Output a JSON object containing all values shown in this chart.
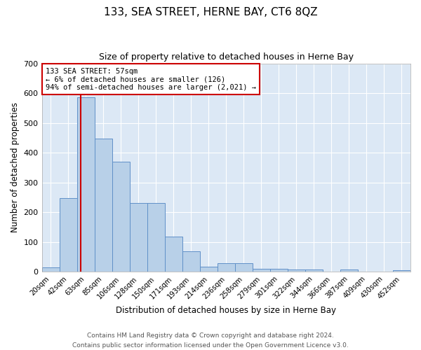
{
  "title": "133, SEA STREET, HERNE BAY, CT6 8QZ",
  "subtitle": "Size of property relative to detached houses in Herne Bay",
  "xlabel": "Distribution of detached houses by size in Herne Bay",
  "ylabel": "Number of detached properties",
  "categories": [
    "20sqm",
    "42sqm",
    "63sqm",
    "85sqm",
    "106sqm",
    "128sqm",
    "150sqm",
    "171sqm",
    "193sqm",
    "214sqm",
    "236sqm",
    "258sqm",
    "279sqm",
    "301sqm",
    "322sqm",
    "344sqm",
    "366sqm",
    "387sqm",
    "409sqm",
    "430sqm",
    "452sqm"
  ],
  "values": [
    15,
    247,
    585,
    447,
    370,
    232,
    232,
    117,
    68,
    18,
    28,
    28,
    10,
    10,
    8,
    8,
    0,
    7,
    0,
    0,
    5
  ],
  "bar_color": "#b8d0e8",
  "bar_edge_color": "#6090c8",
  "background_color": "#dce8f5",
  "grid_color": "#ffffff",
  "property_line_color": "#cc0000",
  "annotation_text": "133 SEA STREET: 57sqm\n← 6% of detached houses are smaller (126)\n94% of semi-detached houses are larger (2,021) →",
  "annotation_box_color": "#ffffff",
  "annotation_box_edge_color": "#cc0000",
  "ylim": [
    0,
    700
  ],
  "yticks": [
    0,
    100,
    200,
    300,
    400,
    500,
    600,
    700
  ],
  "footer_line1": "Contains HM Land Registry data © Crown copyright and database right 2024.",
  "footer_line2": "Contains public sector information licensed under the Open Government Licence v3.0."
}
